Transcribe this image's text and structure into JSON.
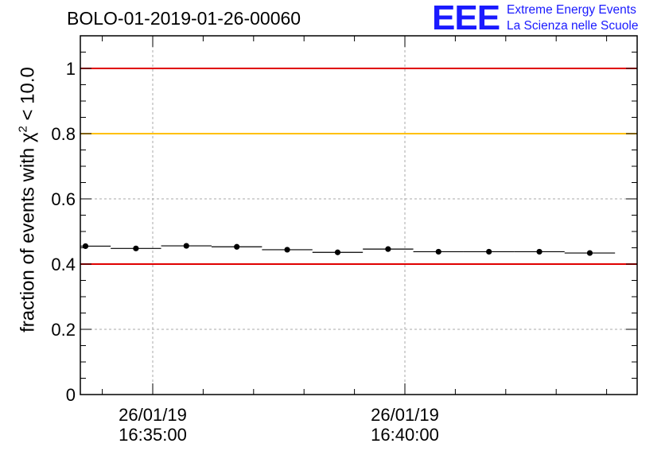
{
  "title": "BOLO-01-2019-01-26-00060",
  "logo": {
    "mark": "EEE",
    "line1": "Extreme Energy Events",
    "line2": "La Scienza nelle Scuole",
    "color": "#1a1aff"
  },
  "chart_data": {
    "type": "scatter",
    "ylabel_prefix": "fraction of events with χ",
    "ylabel_sup": "2",
    "ylabel_suffix": " < 10.0",
    "xlabel": "",
    "ylim": [
      0,
      1.1
    ],
    "yticks": [
      "0",
      "0.2",
      "0.4",
      "0.6",
      "0.8",
      "1"
    ],
    "xticks": [
      {
        "date": "26/01/19",
        "time": "16:35:00"
      },
      {
        "date": "26/01/19",
        "time": "16:40:00"
      }
    ],
    "grid": true,
    "reference_lines": [
      {
        "y": 1.0,
        "color": "#e00000"
      },
      {
        "y": 0.8,
        "color": "#ffc000"
      },
      {
        "y": 0.4,
        "color": "#e00000"
      }
    ],
    "series": [
      {
        "x": [
          "16:33:40",
          "16:34:40",
          "16:35:40",
          "16:36:40",
          "16:37:40",
          "16:38:40",
          "16:39:40",
          "16:40:40",
          "16:41:40",
          "16:42:40",
          "16:43:40"
        ],
        "y": [
          0.455,
          0.448,
          0.456,
          0.453,
          0.444,
          0.436,
          0.446,
          0.438,
          0.438,
          0.438,
          0.434
        ]
      }
    ]
  }
}
